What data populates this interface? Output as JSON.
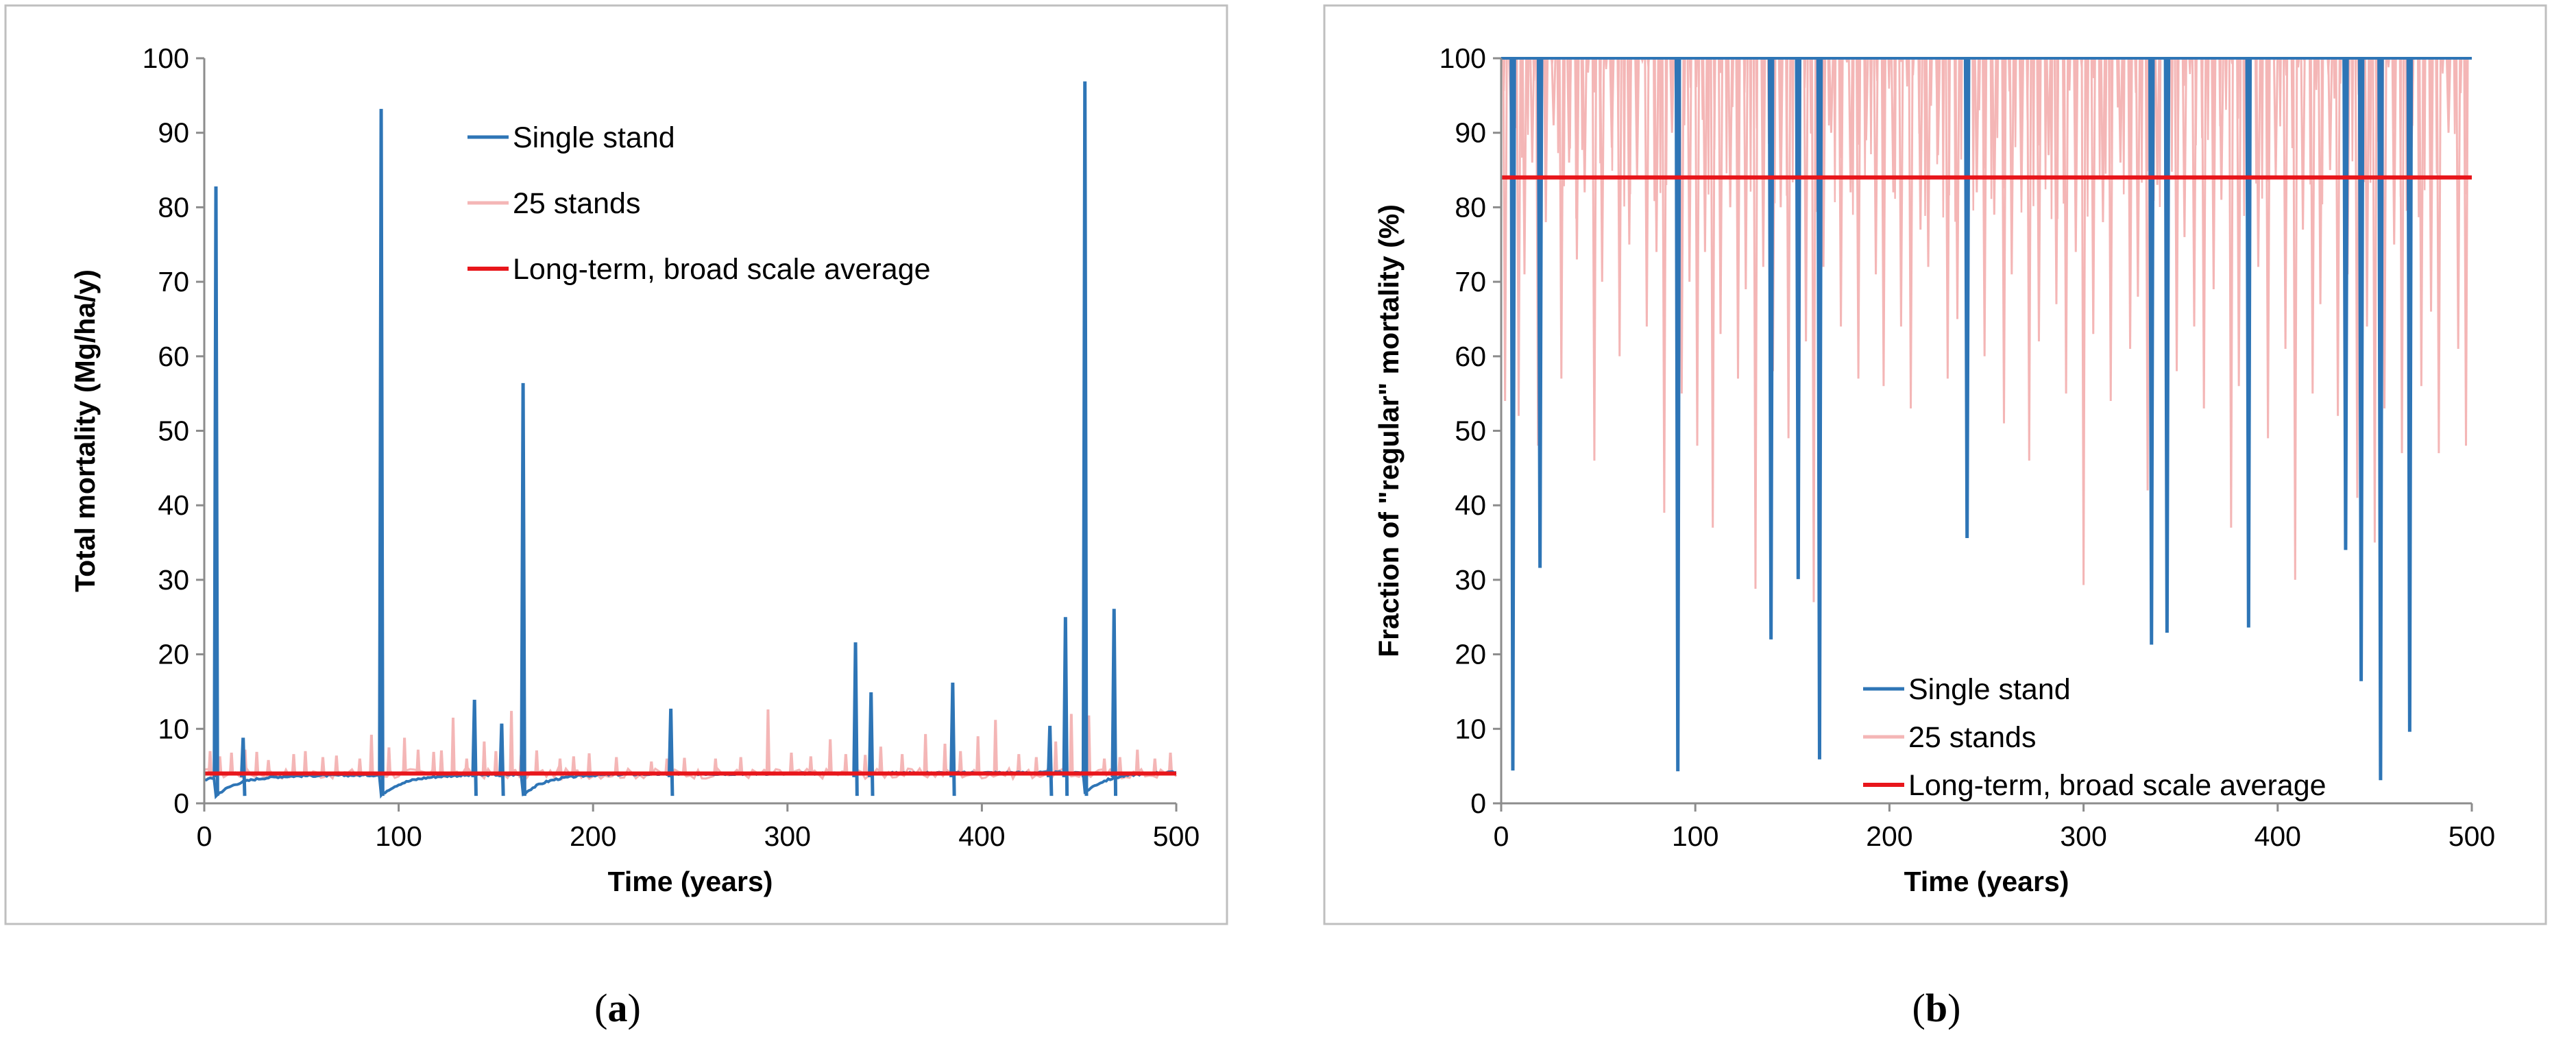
{
  "chart_data": [
    {
      "panel": "a",
      "type": "line",
      "caption": "(a)",
      "caption_letter": "a",
      "title": "",
      "xlabel": "Time (years)",
      "ylabel": "Total mortality (Mg/ha/y)",
      "xlim": [
        0,
        500
      ],
      "ylim": [
        0,
        100
      ],
      "xticks": [
        0,
        100,
        200,
        300,
        400,
        500
      ],
      "yticks": [
        0,
        10,
        20,
        30,
        40,
        50,
        60,
        70,
        80,
        90,
        100
      ],
      "grid": false,
      "legend_position": "top-center",
      "legend": [
        "Single stand",
        "25 stands",
        "Long-term, broad scale average"
      ],
      "series": [
        {
          "name": "Single stand",
          "color": "#2e75b6",
          "baseline": {
            "recovery_low": 1.0,
            "recovery_high": 3.7,
            "trend_per_year": 0.001,
            "noise": 0.25
          },
          "spikes": [
            {
              "x": 6,
              "y": 82.8
            },
            {
              "x": 20,
              "y": 8.8
            },
            {
              "x": 91,
              "y": 93.2
            },
            {
              "x": 139,
              "y": 13.9
            },
            {
              "x": 153,
              "y": 10.7
            },
            {
              "x": 164,
              "y": 56.4
            },
            {
              "x": 240,
              "y": 12.7
            },
            {
              "x": 335,
              "y": 21.6
            },
            {
              "x": 343,
              "y": 14.9
            },
            {
              "x": 385,
              "y": 16.2
            },
            {
              "x": 435,
              "y": 10.4
            },
            {
              "x": 443,
              "y": 25.0
            },
            {
              "x": 453,
              "y": 96.9
            },
            {
              "x": 468,
              "y": 26.1
            }
          ]
        },
        {
          "name": "25 stands",
          "color": "#f4b6b6",
          "baseline": 4.0,
          "spike_years": [
            3,
            8,
            14,
            21,
            27,
            33,
            46,
            52,
            61,
            68,
            80,
            86,
            95,
            103,
            110,
            118,
            122,
            128,
            135,
            144,
            150,
            158,
            163,
            171,
            183,
            190,
            198,
            212,
            230,
            238,
            247,
            263,
            276,
            290,
            302,
            312,
            322,
            330,
            340,
            348,
            359,
            371,
            381,
            389,
            398,
            407,
            419,
            428,
            438,
            446,
            455,
            463,
            471,
            480,
            489,
            497
          ],
          "spike_values": [
            7.0,
            6.3,
            6.8,
            7.2,
            6.9,
            5.8,
            6.6,
            7.0,
            6.2,
            6.4,
            6.0,
            9.2,
            7.5,
            8.8,
            7.2,
            6.9,
            7.1,
            11.5,
            6.0,
            8.3,
            7.0,
            12.4,
            6.5,
            7.1,
            6.0,
            6.3,
            6.7,
            6.2,
            5.6,
            6.0,
            6.1,
            6.0,
            6.2,
            12.6,
            6.8,
            6.3,
            8.6,
            6.6,
            6.5,
            7.6,
            6.6,
            9.3,
            8.0,
            7.0,
            9.0,
            11.2,
            6.6,
            6.2,
            8.3,
            12.0,
            11.8,
            6.0,
            6.2,
            7.2,
            6.0,
            6.8
          ]
        },
        {
          "name": "Long-term, broad scale average",
          "color": "#e8161b",
          "y": 4.0
        }
      ]
    },
    {
      "panel": "b",
      "type": "line",
      "caption": "(b)",
      "caption_letter": "b",
      "title": "",
      "xlabel": "Time (years)",
      "ylabel": "Fraction of \"regular\" mortality (%)",
      "xlim": [
        0,
        500
      ],
      "ylim": [
        0,
        100
      ],
      "xticks": [
        0,
        100,
        200,
        300,
        400,
        500
      ],
      "yticks": [
        0,
        10,
        20,
        30,
        40,
        50,
        60,
        70,
        80,
        90,
        100
      ],
      "grid": false,
      "legend_position": "bottom-center",
      "legend": [
        "Single stand",
        "25 stands",
        "Long-term, broad scale average"
      ],
      "series": [
        {
          "name": "Single stand",
          "color": "#2e75b6",
          "baseline": 100,
          "dips": [
            {
              "x": 6,
              "y": 4.4
            },
            {
              "x": 20,
              "y": 31.6
            },
            {
              "x": 91,
              "y": 4.3
            },
            {
              "x": 139,
              "y": 22.0
            },
            {
              "x": 153,
              "y": 30.1
            },
            {
              "x": 164,
              "y": 5.9
            },
            {
              "x": 240,
              "y": 35.6
            },
            {
              "x": 335,
              "y": 21.3
            },
            {
              "x": 343,
              "y": 22.9
            },
            {
              "x": 385,
              "y": 23.6
            },
            {
              "x": 435,
              "y": 34.0
            },
            {
              "x": 443,
              "y": 16.4
            },
            {
              "x": 453,
              "y": 3.1
            },
            {
              "x": 468,
              "y": 9.6
            }
          ]
        },
        {
          "name": "25 stands",
          "color": "#f4b6b6",
          "baseline": 100,
          "dip_years": [
            2,
            5,
            9,
            12,
            16,
            19,
            23,
            27,
            31,
            35,
            39,
            43,
            48,
            52,
            57,
            61,
            66,
            70,
            75,
            80,
            84,
            88,
            93,
            97,
            101,
            105,
            109,
            113,
            118,
            122,
            126,
            131,
            135,
            140,
            144,
            148,
            153,
            157,
            161,
            166,
            170,
            175,
            180,
            184,
            188,
            193,
            197,
            202,
            206,
            211,
            216,
            220,
            225,
            230,
            235,
            240,
            245,
            249,
            254,
            259,
            263,
            268,
            272,
            277,
            282,
            286,
            291,
            296,
            300,
            305,
            310,
            314,
            319,
            324,
            328,
            333,
            338,
            343,
            348,
            352,
            357,
            362,
            367,
            371,
            376,
            380,
            385,
            390,
            395,
            399,
            404,
            409,
            413,
            418,
            422,
            427,
            431,
            436,
            441,
            446,
            450,
            455,
            460,
            464,
            469,
            474,
            479,
            483,
            488,
            493,
            497
          ],
          "dip_values": [
            54,
            92,
            52,
            71,
            86,
            48,
            78,
            91,
            57,
            86,
            73,
            82,
            46,
            70,
            88,
            60,
            75,
            84,
            64,
            74,
            39,
            90,
            55,
            70,
            48,
            74,
            37,
            63,
            80,
            57,
            69,
            28.8,
            72,
            58,
            80,
            49,
            86,
            62,
            27,
            72,
            90,
            64,
            82,
            57,
            89,
            71,
            56,
            82,
            64,
            53,
            77,
            72,
            87,
            57,
            65,
            44,
            82,
            60,
            79,
            51,
            71,
            81,
            46,
            62,
            87,
            67,
            55,
            74,
            29.3,
            63,
            78,
            54,
            86,
            61,
            68,
            42,
            83,
            66,
            58,
            76,
            64,
            53,
            69,
            81,
            37,
            56,
            86,
            72,
            49,
            84,
            61,
            30,
            77,
            55,
            67,
            85,
            52,
            71,
            41,
            64,
            35,
            53,
            75,
            47,
            88,
            56,
            66,
            47,
            90,
            61,
            48
          ]
        },
        {
          "name": "Long-term, broad scale average",
          "color": "#e8161b",
          "y": 84
        }
      ]
    }
  ]
}
